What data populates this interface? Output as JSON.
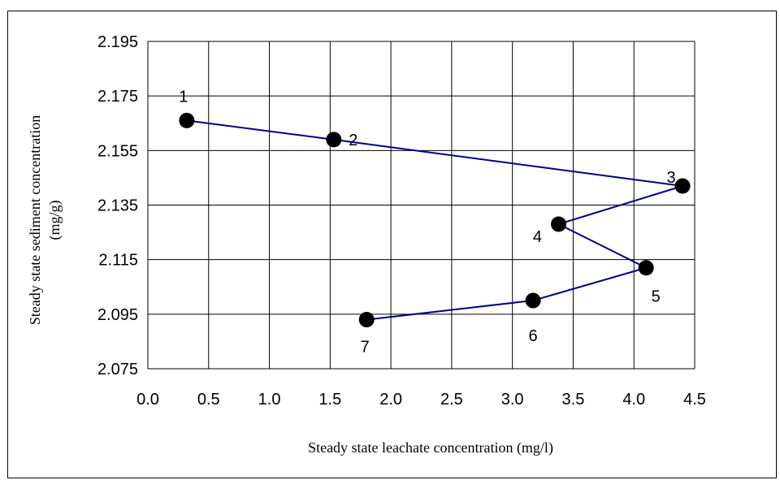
{
  "chart_data": {
    "type": "scatter",
    "xlabel": "Steady state leachate concentration (mg/l)",
    "ylabel_line1": "Steady state sediment concentration",
    "ylabel_line2": "(mg/g)",
    "xlim": [
      0.0,
      4.5
    ],
    "ylim": [
      2.075,
      2.195
    ],
    "x_ticks": [
      "0.0",
      "0.5",
      "1.0",
      "1.5",
      "2.0",
      "2.5",
      "3.0",
      "3.5",
      "4.0",
      "4.5"
    ],
    "y_ticks": [
      "2.075",
      "2.095",
      "2.115",
      "2.135",
      "2.155",
      "2.175",
      "2.195"
    ],
    "grid": true,
    "connected": true,
    "line_color": "#000080",
    "marker_color": "#000000",
    "points": [
      {
        "label": "1",
        "x": 0.32,
        "y": 2.166
      },
      {
        "label": "2",
        "x": 1.53,
        "y": 2.159
      },
      {
        "label": "3",
        "x": 4.4,
        "y": 2.142
      },
      {
        "label": "4",
        "x": 3.38,
        "y": 2.128
      },
      {
        "label": "5",
        "x": 4.1,
        "y": 2.112
      },
      {
        "label": "6",
        "x": 3.17,
        "y": 2.1
      },
      {
        "label": "7",
        "x": 1.8,
        "y": 2.093
      }
    ]
  }
}
